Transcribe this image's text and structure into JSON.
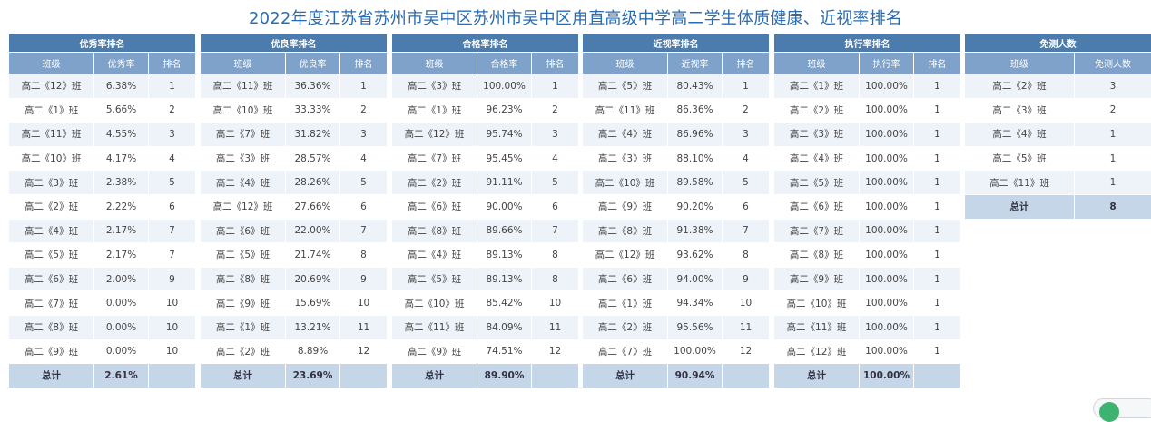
{
  "page_title": "2022年度江苏省苏州市吴中区苏州市吴中区甪直高级中学高二学生体质健康、近视率排名",
  "colors": {
    "header_dark": "#4c7cad",
    "header_light": "#7ea2c9",
    "row_alt": "#eef3f9",
    "total_row": "#c4d6e8",
    "title": "#2b6cb0"
  },
  "tables": [
    {
      "title": "优秀率排名",
      "cols": [
        "班级",
        "优秀率",
        "排名"
      ],
      "rows": [
        [
          "高二《12》班",
          "6.38%",
          "1"
        ],
        [
          "高二《1》班",
          "5.66%",
          "2"
        ],
        [
          "高二《11》班",
          "4.55%",
          "3"
        ],
        [
          "高二《10》班",
          "4.17%",
          "4"
        ],
        [
          "高二《3》班",
          "2.38%",
          "5"
        ],
        [
          "高二《2》班",
          "2.22%",
          "6"
        ],
        [
          "高二《4》班",
          "2.17%",
          "7"
        ],
        [
          "高二《5》班",
          "2.17%",
          "7"
        ],
        [
          "高二《6》班",
          "2.00%",
          "9"
        ],
        [
          "高二《7》班",
          "0.00%",
          "10"
        ],
        [
          "高二《8》班",
          "0.00%",
          "10"
        ],
        [
          "高二《9》班",
          "0.00%",
          "10"
        ]
      ],
      "total": [
        "总计",
        "2.61%",
        ""
      ]
    },
    {
      "title": "优良率排名",
      "cols": [
        "班级",
        "优良率",
        "排名"
      ],
      "rows": [
        [
          "高二《11》班",
          "36.36%",
          "1"
        ],
        [
          "高二《10》班",
          "33.33%",
          "2"
        ],
        [
          "高二《7》班",
          "31.82%",
          "3"
        ],
        [
          "高二《3》班",
          "28.57%",
          "4"
        ],
        [
          "高二《4》班",
          "28.26%",
          "5"
        ],
        [
          "高二《12》班",
          "27.66%",
          "6"
        ],
        [
          "高二《6》班",
          "22.00%",
          "7"
        ],
        [
          "高二《5》班",
          "21.74%",
          "8"
        ],
        [
          "高二《8》班",
          "20.69%",
          "9"
        ],
        [
          "高二《9》班",
          "15.69%",
          "10"
        ],
        [
          "高二《1》班",
          "13.21%",
          "11"
        ],
        [
          "高二《2》班",
          "8.89%",
          "12"
        ]
      ],
      "total": [
        "总计",
        "23.69%",
        ""
      ]
    },
    {
      "title": "合格率排名",
      "cols": [
        "班级",
        "合格率",
        "排名"
      ],
      "rows": [
        [
          "高二《3》班",
          "100.00%",
          "1"
        ],
        [
          "高二《1》班",
          "96.23%",
          "2"
        ],
        [
          "高二《12》班",
          "95.74%",
          "3"
        ],
        [
          "高二《7》班",
          "95.45%",
          "4"
        ],
        [
          "高二《2》班",
          "91.11%",
          "5"
        ],
        [
          "高二《6》班",
          "90.00%",
          "6"
        ],
        [
          "高二《8》班",
          "89.66%",
          "7"
        ],
        [
          "高二《4》班",
          "89.13%",
          "8"
        ],
        [
          "高二《5》班",
          "89.13%",
          "8"
        ],
        [
          "高二《10》班",
          "85.42%",
          "10"
        ],
        [
          "高二《11》班",
          "84.09%",
          "11"
        ],
        [
          "高二《9》班",
          "74.51%",
          "12"
        ]
      ],
      "total": [
        "总计",
        "89.90%",
        ""
      ]
    },
    {
      "title": "近视率排名",
      "cols": [
        "班级",
        "近视率",
        "排名"
      ],
      "rows": [
        [
          "高二《5》班",
          "80.43%",
          "1"
        ],
        [
          "高二《11》班",
          "86.36%",
          "2"
        ],
        [
          "高二《4》班",
          "86.96%",
          "3"
        ],
        [
          "高二《3》班",
          "88.10%",
          "4"
        ],
        [
          "高二《10》班",
          "89.58%",
          "5"
        ],
        [
          "高二《9》班",
          "90.20%",
          "6"
        ],
        [
          "高二《8》班",
          "91.38%",
          "7"
        ],
        [
          "高二《12》班",
          "93.62%",
          "8"
        ],
        [
          "高二《6》班",
          "94.00%",
          "9"
        ],
        [
          "高二《1》班",
          "94.34%",
          "10"
        ],
        [
          "高二《2》班",
          "95.56%",
          "11"
        ],
        [
          "高二《7》班",
          "100.00%",
          "12"
        ]
      ],
      "total": [
        "总计",
        "90.94%",
        ""
      ]
    },
    {
      "title": "执行率排名",
      "cols": [
        "班级",
        "执行率",
        "排名"
      ],
      "rows": [
        [
          "高二《1》班",
          "100.00%",
          "1"
        ],
        [
          "高二《2》班",
          "100.00%",
          "1"
        ],
        [
          "高二《3》班",
          "100.00%",
          "1"
        ],
        [
          "高二《4》班",
          "100.00%",
          "1"
        ],
        [
          "高二《5》班",
          "100.00%",
          "1"
        ],
        [
          "高二《6》班",
          "100.00%",
          "1"
        ],
        [
          "高二《7》班",
          "100.00%",
          "1"
        ],
        [
          "高二《8》班",
          "100.00%",
          "1"
        ],
        [
          "高二《9》班",
          "100.00%",
          "1"
        ],
        [
          "高二《10》班",
          "100.00%",
          "1"
        ],
        [
          "高二《11》班",
          "100.00%",
          "1"
        ],
        [
          "高二《12》班",
          "100.00%",
          "1"
        ]
      ],
      "total": [
        "总计",
        "100.00%",
        ""
      ]
    }
  ],
  "exempt_table": {
    "title": "免测人数",
    "cols": [
      "班级",
      "免测人数"
    ],
    "rows": [
      [
        "高二《2》班",
        "3"
      ],
      [
        "高二《3》班",
        "2"
      ],
      [
        "高二《4》班",
        "1"
      ],
      [
        "高二《5》班",
        "1"
      ],
      [
        "高二《11》班",
        "1"
      ]
    ],
    "total": [
      "总计",
      "8"
    ]
  }
}
